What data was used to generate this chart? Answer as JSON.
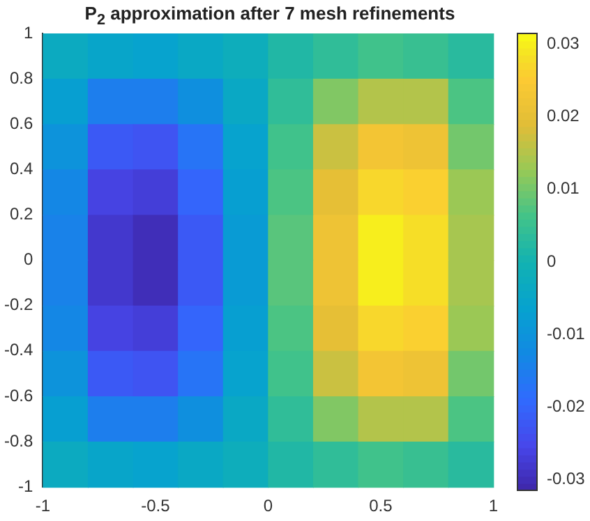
{
  "chart_data": {
    "type": "heatmap",
    "title": "P$_{2}$ approximation after 7 mesh refinements",
    "xlim": [
      -1,
      1
    ],
    "xticks": [
      -1,
      -0.5,
      0,
      0.5,
      1
    ],
    "ylim": [
      -1,
      1
    ],
    "yticks": [
      -1,
      -0.8,
      -0.6,
      -0.4,
      -0.2,
      0,
      0.2,
      0.4,
      0.6,
      0.8,
      1
    ],
    "clim": [
      -0.0315,
      0.0315
    ],
    "cticks": [
      -0.03,
      -0.02,
      -0.01,
      0,
      0.01,
      0.02,
      0.03
    ],
    "cells": [
      [
        -0.003,
        -0.005,
        -0.006,
        -0.004,
        -0.002,
        0.002,
        0.004,
        0.006,
        0.005,
        0.003
      ],
      [
        -0.007,
        -0.015,
        -0.015,
        -0.011,
        -0.004,
        0.004,
        0.011,
        0.015,
        0.015,
        0.007
      ],
      [
        -0.01,
        -0.022,
        -0.023,
        -0.017,
        -0.006,
        0.006,
        0.017,
        0.023,
        0.022,
        0.01
      ],
      [
        -0.013,
        -0.026,
        -0.027,
        -0.02,
        -0.007,
        0.007,
        0.02,
        0.027,
        0.026,
        0.013
      ],
      [
        -0.014,
        -0.028,
        -0.03,
        -0.022,
        -0.008,
        0.008,
        0.022,
        0.03,
        0.028,
        0.014
      ],
      [
        -0.014,
        -0.028,
        -0.03,
        -0.022,
        -0.008,
        0.008,
        0.022,
        0.03,
        0.028,
        0.014
      ],
      [
        -0.013,
        -0.026,
        -0.027,
        -0.02,
        -0.007,
        0.007,
        0.02,
        0.027,
        0.026,
        0.013
      ],
      [
        -0.01,
        -0.022,
        -0.023,
        -0.017,
        -0.006,
        0.006,
        0.017,
        0.023,
        0.022,
        0.01
      ],
      [
        -0.007,
        -0.015,
        -0.015,
        -0.011,
        -0.004,
        0.004,
        0.011,
        0.015,
        0.015,
        0.007
      ],
      [
        -0.003,
        -0.005,
        -0.006,
        -0.004,
        -0.002,
        0.002,
        0.004,
        0.006,
        0.005,
        0.003
      ]
    ]
  }
}
